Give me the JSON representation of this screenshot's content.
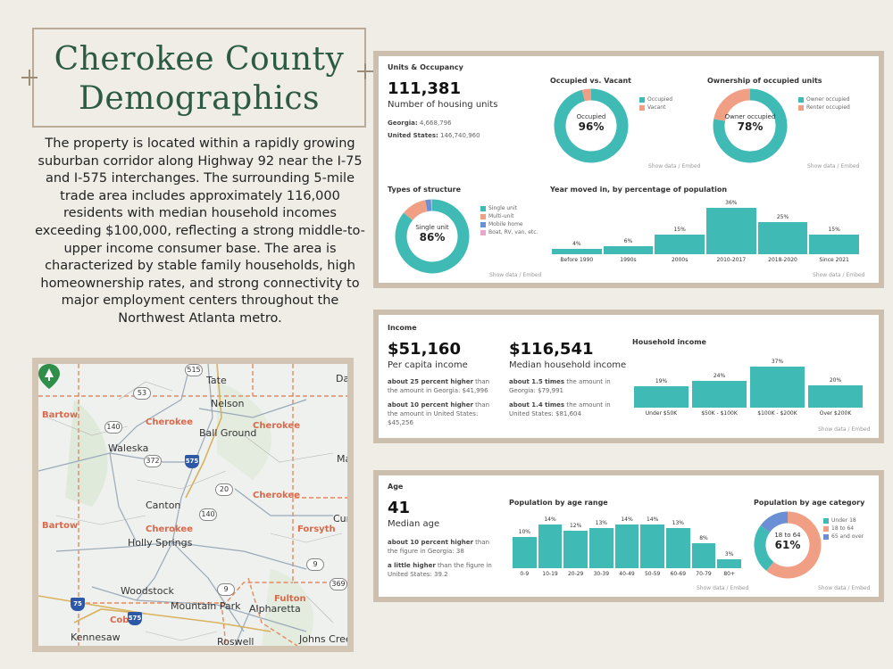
{
  "title": {
    "line1": "Cherokee County",
    "line2": "Demographics"
  },
  "description": "The property is located within a rapidly growing suburban corridor along Highway 92 near the I-75 and I-575 interchanges. The surrounding 5-mile trade area includes approximately 116,000 residents with median household incomes exceeding $100,000, reflecting a strong middle-to-upper income consumer base. The area is characterized by stable family households, high homeownership rates, and strong connectivity to major employment centers throughout the Northwest Atlanta metro.",
  "map": {
    "places": [
      "Tate",
      "Nelson",
      "Waleska",
      "Ball Ground",
      "Canton",
      "Holly Springs",
      "Woodstock",
      "Mountain Park",
      "Alpharetta",
      "Roswell",
      "Kennesaw",
      "Johns Creek",
      "Daw",
      "Mat",
      "Cum"
    ],
    "counties": [
      "Bartow",
      "Cherokee",
      "Cherokee",
      "Cherokee",
      "Cherokee",
      "Bartow",
      "Forsyth",
      "Fulton",
      "Cobb"
    ],
    "routes": [
      "515",
      "53",
      "140",
      "372",
      "20",
      "140",
      "9",
      "9",
      "369"
    ],
    "interstates": [
      "575",
      "75",
      "575"
    ]
  },
  "colors": {
    "teal": "#3fbab5",
    "salmon": "#f09f84",
    "blue": "#6a8fd4",
    "pink": "#e7a8c9",
    "accent_green": "#2c5a44"
  },
  "units": {
    "section_title": "Units & Occupancy",
    "total": "111,381",
    "total_label": "Number of housing units",
    "georgia_label": "Georgia:",
    "georgia_value": "4,668,796",
    "us_label": "United States:",
    "us_value": "146,740,960",
    "occupied": {
      "title": "Occupied vs. Vacant",
      "center_label": "Occupied",
      "center_value": "96%",
      "legend": [
        "Occupied",
        "Vacant"
      ],
      "values": [
        96,
        4
      ],
      "show": "Show data / Embed"
    },
    "ownership": {
      "title": "Ownership of occupied units",
      "center_label": "Owner occupied",
      "center_value": "78%",
      "legend": [
        "Owner occupied",
        "Renter occupied"
      ],
      "values": [
        78,
        22
      ],
      "show": "Show data / Embed"
    },
    "structure": {
      "title": "Types of structure",
      "center_label": "Single unit",
      "center_value": "86%",
      "legend": [
        "Single unit",
        "Multi-unit",
        "Mobile home",
        "Boat, RV, van, etc."
      ],
      "values": [
        86,
        11,
        2.5,
        0.5
      ],
      "show": "Show data / Embed"
    },
    "year_moved": {
      "title": "Year moved in, by percentage of population",
      "show": "Show data / Embed"
    }
  },
  "income": {
    "section_title": "Income",
    "per_capita": "$51,160",
    "per_capita_label": "Per capita income",
    "pc_note1_bold": "about 25 percent higher",
    "pc_note1_rest": " than the amount in Georgia: $41,996",
    "pc_note2_bold": "about 10 percent higher",
    "pc_note2_rest": " than the amount in United States: $45,256",
    "median": "$116,541",
    "median_label": "Median household income",
    "md_note1_bold": "about 1.5 times",
    "md_note1_rest": " the amount in Georgia: $79,991",
    "md_note2_bold": "about 1.4 times",
    "md_note2_rest": " the amount in United States: $81,604",
    "household": {
      "title": "Household income",
      "show": "Show data / Embed"
    }
  },
  "age": {
    "section_title": "Age",
    "median": "41",
    "median_label": "Median age",
    "note1_bold": "about 10 percent higher",
    "note1_rest": " than the figure in Georgia: 38",
    "note2_bold": "a little higher",
    "note2_rest": " than the figure in United States: 39.2",
    "range": {
      "title": "Population by age range",
      "show": "Show data / Embed"
    },
    "category": {
      "title": "Population by age category",
      "center_label": "18 to 64",
      "center_value": "61%",
      "legend": [
        "Under 18",
        "18 to 64",
        "65 and over"
      ],
      "values": [
        24,
        61,
        15
      ],
      "show": "Show data / Embed"
    }
  },
  "chart_data": [
    {
      "type": "bar",
      "title": "Year moved in, by percentage of population",
      "categories": [
        "Before 1990",
        "1990s",
        "2000s",
        "2010-2017",
        "2018-2020",
        "Since 2021"
      ],
      "values": [
        4,
        6,
        15,
        36,
        25,
        15
      ],
      "labels": [
        "4%",
        "6%",
        "15%",
        "36%",
        "25%",
        "15%"
      ],
      "ylim": [
        0,
        36
      ]
    },
    {
      "type": "bar",
      "title": "Household income",
      "categories": [
        "Under $50K",
        "$50K - $100K",
        "$100K - $200K",
        "Over $200K"
      ],
      "values": [
        19,
        24,
        37,
        20
      ],
      "labels": [
        "19%",
        "24%",
        "37%",
        "20%"
      ],
      "ylim": [
        0,
        37
      ]
    },
    {
      "type": "bar",
      "title": "Population by age range",
      "categories": [
        "0-9",
        "10-19",
        "20-29",
        "30-39",
        "40-49",
        "50-59",
        "60-69",
        "70-79",
        "80+"
      ],
      "values": [
        10,
        14,
        12,
        13,
        14,
        14,
        13,
        8,
        3
      ],
      "labels": [
        "10%",
        "14%",
        "12%",
        "13%",
        "14%",
        "14%",
        "13%",
        "8%",
        "3%"
      ],
      "ylim": [
        0,
        14
      ]
    }
  ]
}
